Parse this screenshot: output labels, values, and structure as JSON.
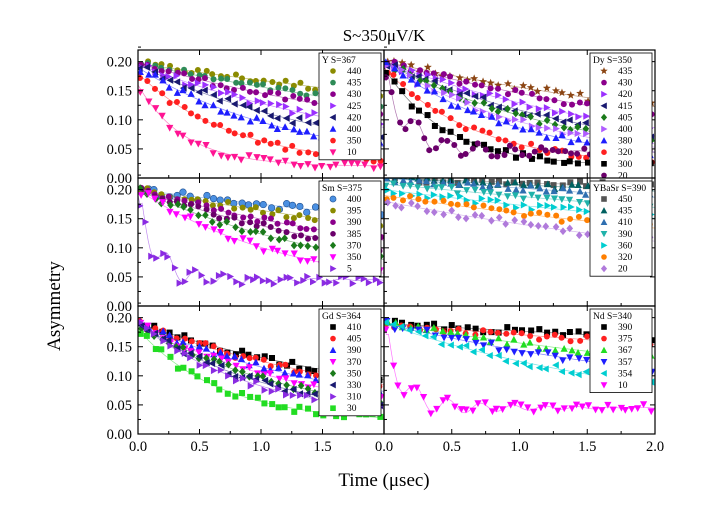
{
  "chart_data": {
    "type": "scatter",
    "title": "S~350μV/K",
    "xlabel": "Time (μsec)",
    "ylabel": "Asymmetry",
    "xlim": [
      0.0,
      2.0
    ],
    "ylim": [
      0.0,
      0.22
    ],
    "x_ticks": [
      "0.0",
      "0.5",
      "1.0",
      "1.5",
      "2.0"
    ],
    "y_ticks": [
      "0.00",
      "0.05",
      "0.10",
      "0.15",
      "0.20"
    ],
    "panels": [
      {
        "name": "Y S=367",
        "position": "top-left",
        "series": [
          {
            "name": "440",
            "color": "#8b8b00",
            "marker": "circle",
            "a0": 0.197,
            "lambda": 0.18,
            "osc": 0
          },
          {
            "name": "435",
            "color": "#2e8b57",
            "marker": "circle",
            "a0": 0.197,
            "lambda": 0.26,
            "osc": 0
          },
          {
            "name": "430",
            "color": "#8b008b",
            "marker": "circle",
            "a0": 0.197,
            "lambda": 0.34,
            "osc": 0
          },
          {
            "name": "425",
            "color": "#9b30ff",
            "marker": "tri-right",
            "a0": 0.195,
            "lambda": 0.48,
            "osc": 0
          },
          {
            "name": "420",
            "color": "#191970",
            "marker": "tri-left",
            "a0": 0.195,
            "lambda": 0.62,
            "osc": 0
          },
          {
            "name": "400",
            "color": "#1e1eff",
            "marker": "tri-up",
            "a0": 0.19,
            "lambda": 0.8,
            "osc": 0
          },
          {
            "name": "350",
            "color": "#ff2020",
            "marker": "circle",
            "a0": 0.18,
            "lambda": 1.3,
            "osc": 0
          },
          {
            "name": "10",
            "color": "#ff1493",
            "marker": "tri-down",
            "a0": 0.16,
            "lambda": 2.6,
            "osc": 0
          }
        ]
      },
      {
        "name": "Dy S=350",
        "position": "top-right",
        "series": [
          {
            "name": "435",
            "color": "#8b4513",
            "marker": "star",
            "a0": 0.2,
            "lambda": 0.28,
            "osc": 0
          },
          {
            "name": "430",
            "color": "#8b008b",
            "marker": "circle",
            "a0": 0.2,
            "lambda": 0.36,
            "osc": 0
          },
          {
            "name": "420",
            "color": "#9b30ff",
            "marker": "tri-right",
            "a0": 0.2,
            "lambda": 0.5,
            "osc": 0
          },
          {
            "name": "415",
            "color": "#191970",
            "marker": "tri-left",
            "a0": 0.2,
            "lambda": 0.62,
            "osc": 0
          },
          {
            "name": "405",
            "color": "#1a7a1a",
            "marker": "diamond",
            "a0": 0.2,
            "lambda": 0.72,
            "osc": 0
          },
          {
            "name": "400",
            "color": "#b05cff",
            "marker": "tri-right",
            "a0": 0.2,
            "lambda": 0.85,
            "osc": 0
          },
          {
            "name": "380",
            "color": "#1e1eff",
            "marker": "tri-up",
            "a0": 0.2,
            "lambda": 1.0,
            "osc": 0
          },
          {
            "name": "320",
            "color": "#ff2020",
            "marker": "circle",
            "a0": 0.19,
            "lambda": 1.5,
            "osc": 0
          },
          {
            "name": "300",
            "color": "#000000",
            "marker": "square",
            "a0": 0.19,
            "lambda": 2.2,
            "osc": 0
          },
          {
            "name": "20",
            "color": "#6b006b",
            "marker": "circle",
            "a0": 0.18,
            "lambda": 4.0,
            "osc": 1
          }
        ]
      },
      {
        "name": "Sm S=375",
        "position": "middle-left",
        "series": [
          {
            "name": "400",
            "color": "#4a90e2",
            "marker": "ball",
            "a0": 0.2,
            "lambda": 0.15,
            "osc": 0
          },
          {
            "name": "395",
            "color": "#8b8b00",
            "marker": "circle",
            "a0": 0.2,
            "lambda": 0.22,
            "osc": 0
          },
          {
            "name": "390",
            "color": "#8b008b",
            "marker": "circle",
            "a0": 0.2,
            "lambda": 0.33,
            "osc": 0
          },
          {
            "name": "385",
            "color": "#6b006b",
            "marker": "circle",
            "a0": 0.2,
            "lambda": 0.42,
            "osc": 0
          },
          {
            "name": "370",
            "color": "#1a7a1a",
            "marker": "diamond",
            "a0": 0.2,
            "lambda": 0.55,
            "osc": 0
          },
          {
            "name": "350",
            "color": "#ff00ff",
            "marker": "tri-down",
            "a0": 0.2,
            "lambda": 0.8,
            "osc": 0
          },
          {
            "name": "5",
            "color": "#8a2be2",
            "marker": "tri-right",
            "a0": 0.19,
            "lambda": 5.0,
            "osc": 1
          }
        ]
      },
      {
        "name": "YBaSr S=390",
        "position": "middle-right",
        "series": [
          {
            "name": "450",
            "color": "#555555",
            "marker": "square",
            "a0": 0.22,
            "lambda": 0.04,
            "osc": 0
          },
          {
            "name": "435",
            "color": "#006060",
            "marker": "tri-up",
            "a0": 0.22,
            "lambda": 0.06,
            "osc": 0
          },
          {
            "name": "410",
            "color": "#2f6fb0",
            "marker": "tri-up",
            "a0": 0.22,
            "lambda": 0.09,
            "osc": 0
          },
          {
            "name": "390",
            "color": "#20b2aa",
            "marker": "tri-down",
            "a0": 0.21,
            "lambda": 0.12,
            "osc": 0
          },
          {
            "name": "360",
            "color": "#00ced1",
            "marker": "tri-right",
            "a0": 0.2,
            "lambda": 0.16,
            "osc": 0
          },
          {
            "name": "320",
            "color": "#ff7f00",
            "marker": "circle",
            "a0": 0.19,
            "lambda": 0.2,
            "osc": 0
          },
          {
            "name": "20",
            "color": "#b07adb",
            "marker": "diamond",
            "a0": 0.18,
            "lambda": 0.28,
            "osc": 0
          }
        ]
      },
      {
        "name": "Gd S=364",
        "position": "bottom-left",
        "series": [
          {
            "name": "410",
            "color": "#000000",
            "marker": "square",
            "a0": 0.19,
            "lambda": 0.42,
            "osc": 0
          },
          {
            "name": "405",
            "color": "#ff2020",
            "marker": "circle",
            "a0": 0.19,
            "lambda": 0.48,
            "osc": 0
          },
          {
            "name": "390",
            "color": "#1e1eff",
            "marker": "tri-up",
            "a0": 0.19,
            "lambda": 0.58,
            "osc": 0
          },
          {
            "name": "370",
            "color": "#ff00ff",
            "marker": "tri-down",
            "a0": 0.19,
            "lambda": 0.7,
            "osc": 0
          },
          {
            "name": "350",
            "color": "#1a7a1a",
            "marker": "diamond",
            "a0": 0.19,
            "lambda": 0.8,
            "osc": 0
          },
          {
            "name": "330",
            "color": "#191970",
            "marker": "tri-left",
            "a0": 0.19,
            "lambda": 0.9,
            "osc": 0
          },
          {
            "name": "310",
            "color": "#8a2be2",
            "marker": "tri-right",
            "a0": 0.19,
            "lambda": 1.0,
            "osc": 0
          },
          {
            "name": "30",
            "color": "#22dd22",
            "marker": "square",
            "a0": 0.18,
            "lambda": 1.5,
            "osc": 0
          }
        ]
      },
      {
        "name": "Nd S=340",
        "position": "bottom-right",
        "series": [
          {
            "name": "390",
            "color": "#000000",
            "marker": "square",
            "a0": 0.19,
            "lambda": 0.08,
            "osc": 0
          },
          {
            "name": "375",
            "color": "#ff2020",
            "marker": "circle",
            "a0": 0.19,
            "lambda": 0.12,
            "osc": 0
          },
          {
            "name": "367",
            "color": "#22dd22",
            "marker": "tri-up",
            "a0": 0.19,
            "lambda": 0.22,
            "osc": 0
          },
          {
            "name": "357",
            "color": "#1e1eff",
            "marker": "tri-down",
            "a0": 0.19,
            "lambda": 0.32,
            "osc": 0
          },
          {
            "name": "354",
            "color": "#00ced1",
            "marker": "tri-left",
            "a0": 0.19,
            "lambda": 0.48,
            "osc": 0
          },
          {
            "name": "10",
            "color": "#ff00ff",
            "marker": "tri-down",
            "a0": 0.19,
            "lambda": 6.0,
            "osc": 1
          }
        ]
      }
    ]
  }
}
